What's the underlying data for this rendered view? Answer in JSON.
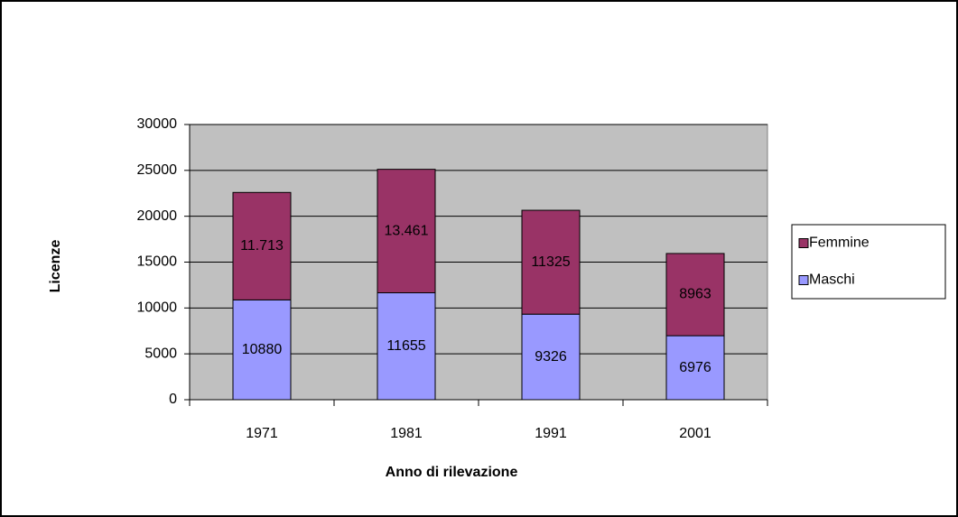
{
  "chart_data": {
    "type": "stacked_bar",
    "xlabel": "Anno di rilevazione",
    "ylabel": "Licenze",
    "categories": [
      "1971",
      "1981",
      "1991",
      "2001"
    ],
    "series": [
      {
        "name": "Maschi",
        "color": "#9999ff",
        "values": [
          10880,
          11655,
          9326,
          6976
        ]
      },
      {
        "name": "Femmine",
        "color": "#993366",
        "values": [
          11713,
          13461,
          11325,
          8963
        ],
        "value_labels": [
          "11.713",
          "13.461",
          "11325",
          "8963"
        ]
      }
    ],
    "ylim": [
      0,
      30000
    ],
    "yticks": [
      0,
      5000,
      10000,
      15000,
      20000,
      25000,
      30000
    ],
    "grid": true,
    "plot_background": "#c0c0c0",
    "legend": "right"
  }
}
